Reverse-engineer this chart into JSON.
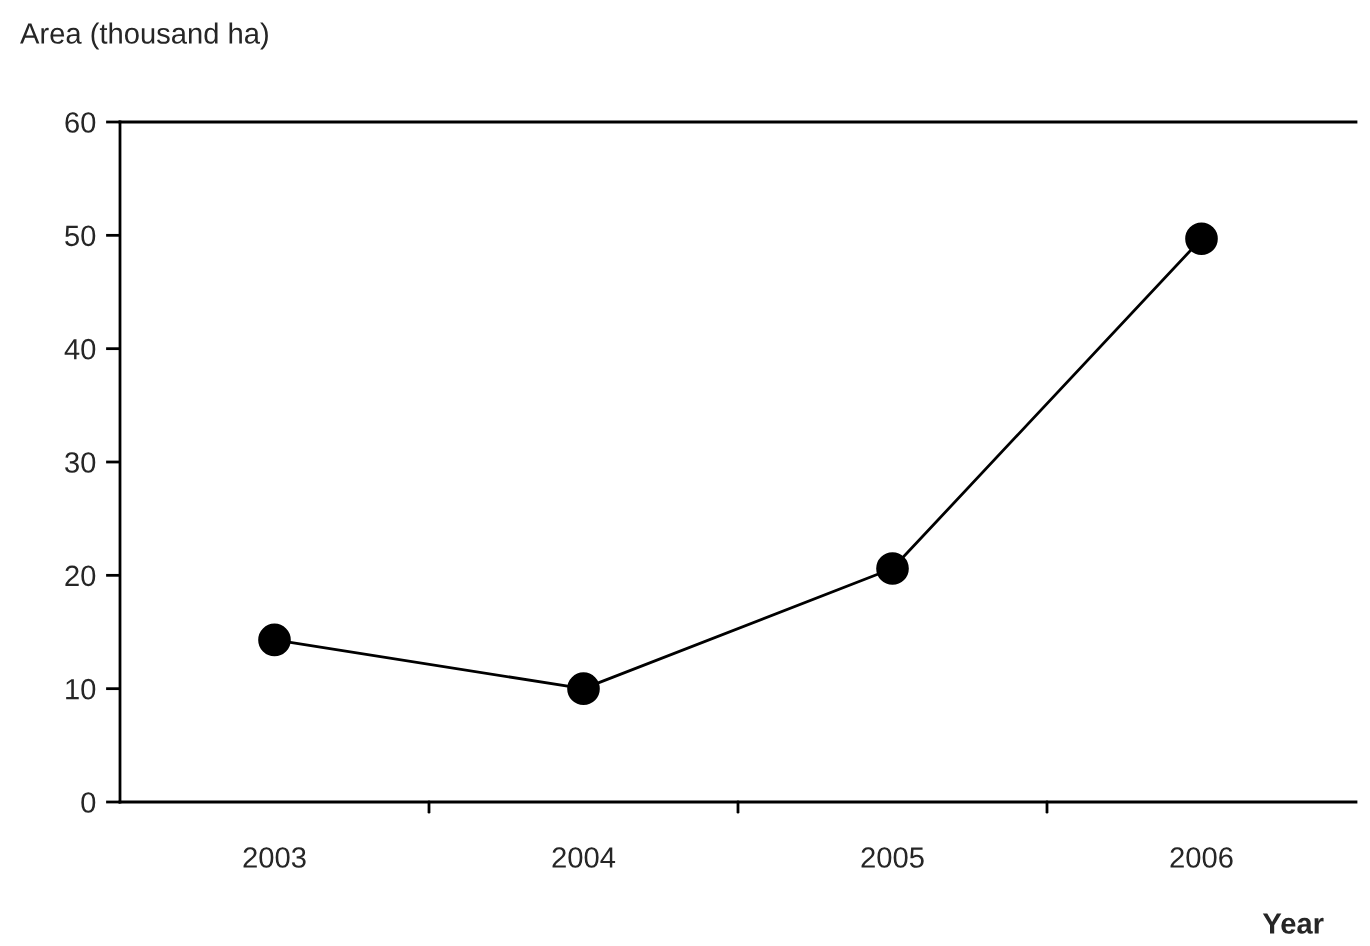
{
  "chart_data": {
    "type": "line",
    "ylabel": "Area (thousand ha)",
    "xlabel": "Year",
    "categories": [
      "2003",
      "2004",
      "2005",
      "2006"
    ],
    "series": [
      {
        "color": "#000000",
        "values": [
          14.3,
          10,
          20.6,
          49.7
        ]
      }
    ],
    "ylim": [
      0,
      60
    ],
    "yticks": [
      0,
      10,
      20,
      30,
      40,
      50,
      60
    ],
    "grid": false,
    "legend": false,
    "marker": "circle",
    "line_style": "solid"
  }
}
